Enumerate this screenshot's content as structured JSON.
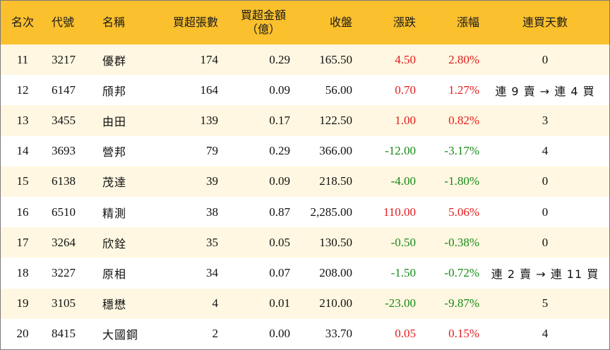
{
  "headers": {
    "rank": "名次",
    "code": "代號",
    "name": "名稱",
    "net_lots": "買超張數",
    "net_amount_line1": "買超金額",
    "net_amount_line2": "（億）",
    "close": "收盤",
    "change": "漲跌",
    "change_pct": "漲幅",
    "streak": "連買天數"
  },
  "colors": {
    "header_bg": "#fbc02d",
    "stripe_bg": "#fff7e1",
    "up": "#e31c1c",
    "down": "#178a17"
  },
  "rows": [
    {
      "rank": "11",
      "code": "3217",
      "name": "優群",
      "net_lots": "174",
      "net_amount": "0.29",
      "close": "165.50",
      "change": "4.50",
      "change_pct": "2.80%",
      "dir": "up",
      "streak": "0"
    },
    {
      "rank": "12",
      "code": "6147",
      "name": "頎邦",
      "net_lots": "164",
      "net_amount": "0.09",
      "close": "56.00",
      "change": "0.70",
      "change_pct": "1.27%",
      "dir": "up",
      "streak": "連 9 賣 → 連 4 買"
    },
    {
      "rank": "13",
      "code": "3455",
      "name": "由田",
      "net_lots": "139",
      "net_amount": "0.17",
      "close": "122.50",
      "change": "1.00",
      "change_pct": "0.82%",
      "dir": "up",
      "streak": "3"
    },
    {
      "rank": "14",
      "code": "3693",
      "name": "營邦",
      "net_lots": "79",
      "net_amount": "0.29",
      "close": "366.00",
      "change": "-12.00",
      "change_pct": "-3.17%",
      "dir": "down",
      "streak": "4"
    },
    {
      "rank": "15",
      "code": "6138",
      "name": "茂達",
      "net_lots": "39",
      "net_amount": "0.09",
      "close": "218.50",
      "change": "-4.00",
      "change_pct": "-1.80%",
      "dir": "down",
      "streak": "0"
    },
    {
      "rank": "16",
      "code": "6510",
      "name": "精測",
      "net_lots": "38",
      "net_amount": "0.87",
      "close": "2,285.00",
      "change": "110.00",
      "change_pct": "5.06%",
      "dir": "up",
      "streak": "0"
    },
    {
      "rank": "17",
      "code": "3264",
      "name": "欣銓",
      "net_lots": "35",
      "net_amount": "0.05",
      "close": "130.50",
      "change": "-0.50",
      "change_pct": "-0.38%",
      "dir": "down",
      "streak": "0"
    },
    {
      "rank": "18",
      "code": "3227",
      "name": "原相",
      "net_lots": "34",
      "net_amount": "0.07",
      "close": "208.00",
      "change": "-1.50",
      "change_pct": "-0.72%",
      "dir": "down",
      "streak": "連 2 賣 → 連 11 買"
    },
    {
      "rank": "19",
      "code": "3105",
      "name": "穩懋",
      "net_lots": "4",
      "net_amount": "0.01",
      "close": "210.00",
      "change": "-23.00",
      "change_pct": "-9.87%",
      "dir": "down",
      "streak": "5"
    },
    {
      "rank": "20",
      "code": "8415",
      "name": "大國鋼",
      "net_lots": "2",
      "net_amount": "0.00",
      "close": "33.70",
      "change": "0.05",
      "change_pct": "0.15%",
      "dir": "up",
      "streak": "4"
    }
  ]
}
